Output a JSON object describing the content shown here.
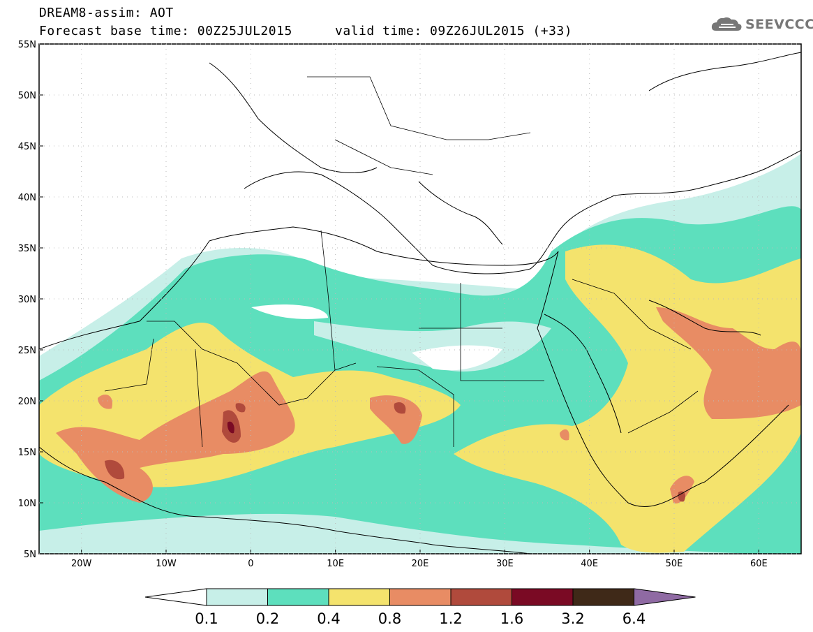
{
  "header": {
    "line1": "DREAM8-assim: AOT",
    "line2": "Forecast base time: 00Z25JUL2015",
    "valid": "valid time: 09Z26JUL2015 (+33)"
  },
  "logo": {
    "text": "SEEVCCC",
    "icon": "cloud-icon"
  },
  "map": {
    "lon_range": [
      -25,
      65
    ],
    "lat_range": [
      5,
      55
    ],
    "lat_ticks": [
      "55N",
      "50N",
      "45N",
      "40N",
      "35N",
      "30N",
      "25N",
      "20N",
      "15N",
      "10N",
      "5N"
    ],
    "lon_ticks": [
      "20W",
      "10W",
      "0",
      "10E",
      "20E",
      "30E",
      "40E",
      "50E",
      "60E"
    ],
    "lon_tick_values": [
      -20,
      -10,
      0,
      10,
      20,
      30,
      40,
      50,
      60
    ],
    "lat_tick_values": [
      55,
      50,
      45,
      40,
      35,
      30,
      25,
      20,
      15,
      10,
      5
    ]
  },
  "colorbar": {
    "labels": [
      "0.1",
      "0.2",
      "0.4",
      "0.8",
      "1.2",
      "1.6",
      "3.2",
      "6.4"
    ],
    "colors": [
      "#ffffff",
      "#c7efe8",
      "#5ddfbd",
      "#f4e36d",
      "#e88c64",
      "#b04a3c",
      "#7a0a24",
      "#3f2918",
      "#8f6aa3"
    ],
    "color_names": [
      "below-0.1",
      "0.1-0.2",
      "0.2-0.4",
      "0.4-0.8",
      "0.8-1.2",
      "1.2-1.6",
      "1.6-3.2",
      "3.2-6.4",
      "above-6.4"
    ]
  },
  "colors": {
    "c1": "#c7efe8",
    "c2": "#5ddfbd",
    "c3": "#f4e36d",
    "c4": "#e88c64",
    "c5": "#b04a3c",
    "c6": "#7a0a24"
  }
}
